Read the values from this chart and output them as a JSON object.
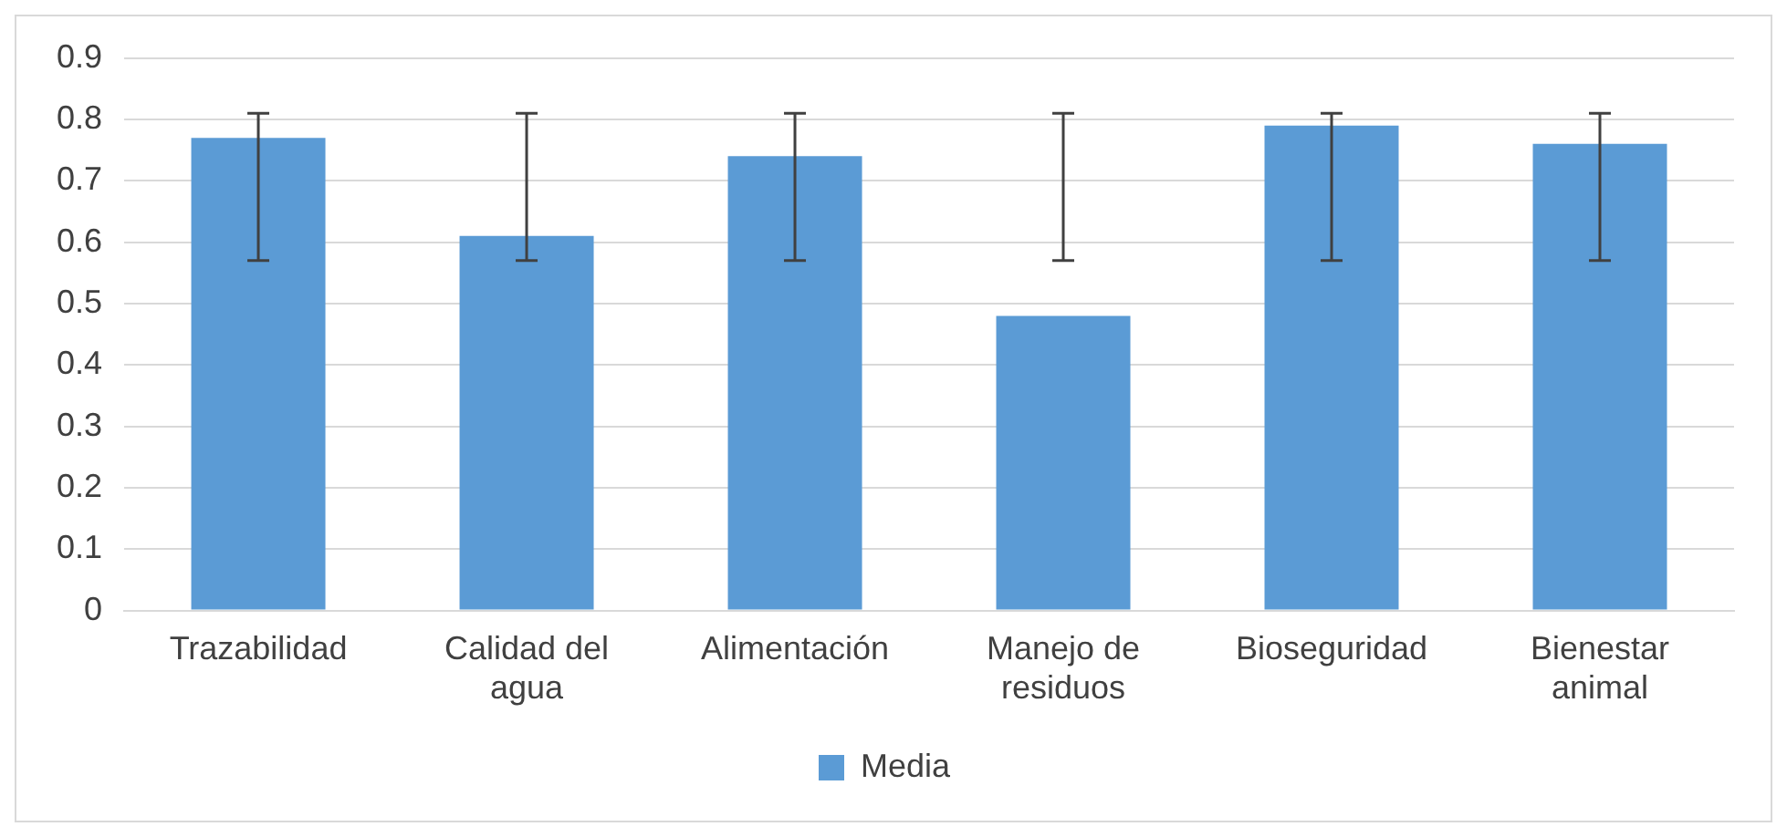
{
  "chart_data": {
    "type": "bar",
    "categories": [
      "Trazabilidad",
      "Calidad del agua",
      "Alimentación",
      "Manejo de residuos",
      "Bioseguridad",
      "Bienestar animal"
    ],
    "series": [
      {
        "name": "Media",
        "color": "#5b9bd5",
        "values": [
          0.77,
          0.61,
          0.74,
          0.48,
          0.79,
          0.76
        ],
        "errors": [
          [
            0.57,
            0.81
          ],
          [
            0.57,
            0.81
          ],
          [
            0.57,
            0.81
          ],
          [
            0.57,
            0.81
          ],
          [
            0.57,
            0.81
          ],
          [
            0.57,
            0.81
          ]
        ]
      }
    ],
    "ylim": [
      0,
      0.9
    ],
    "yticks": [
      0,
      0.1,
      0.2,
      0.3,
      0.4,
      0.5,
      0.6,
      0.7,
      0.8,
      0.9
    ],
    "grid": "y",
    "legend": "bottom"
  }
}
